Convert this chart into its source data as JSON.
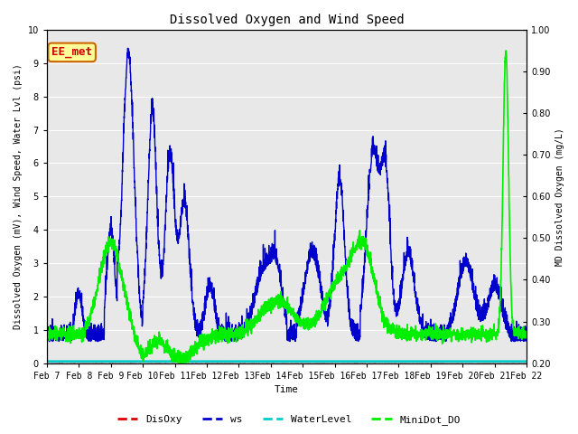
{
  "title": "Dissolved Oxygen and Wind Speed",
  "ylabel_left": "Dissolved Oxygen (mV), Wind Speed, Water Lvl (psi)",
  "ylabel_right": "MD Dissolved Oxygen (mg/L)",
  "xlabel": "Time",
  "ylim_left": [
    0.0,
    10.0
  ],
  "ylim_right": [
    0.2,
    1.0
  ],
  "annotation_text": "EE_met",
  "annotation_color": "#cc0000",
  "annotation_bg": "#ffff99",
  "annotation_border": "#cc6600",
  "x_tick_labels": [
    "Feb 7",
    "Feb 8",
    "Feb 9",
    "Feb 10",
    "Feb 11",
    "Feb 12",
    "Feb 13",
    "Feb 14",
    "Feb 15",
    "Feb 16",
    "Feb 17",
    "Feb 18",
    "Feb 19",
    "Feb 20",
    "Feb 21",
    "Feb 22"
  ],
  "bg_color": "#e8e8e8",
  "line_colors": {
    "DisOxy": "#dd0000",
    "ws": "#0000cc",
    "WaterLevel": "#00cccc",
    "MiniDot_DO": "#00ee00"
  },
  "line_widths": {
    "DisOxy": 1.2,
    "ws": 1.0,
    "WaterLevel": 2.0,
    "MiniDot_DO": 1.2
  },
  "yticks_left": [
    0.0,
    1.0,
    2.0,
    3.0,
    4.0,
    5.0,
    6.0,
    7.0,
    8.0,
    9.0,
    10.0
  ],
  "yticks_right": [
    0.2,
    0.3,
    0.4,
    0.5,
    0.6,
    0.7,
    0.8,
    0.9,
    1.0
  ],
  "font_family": "monospace",
  "title_fontsize": 10,
  "label_fontsize": 7,
  "tick_fontsize": 7,
  "legend_fontsize": 8
}
